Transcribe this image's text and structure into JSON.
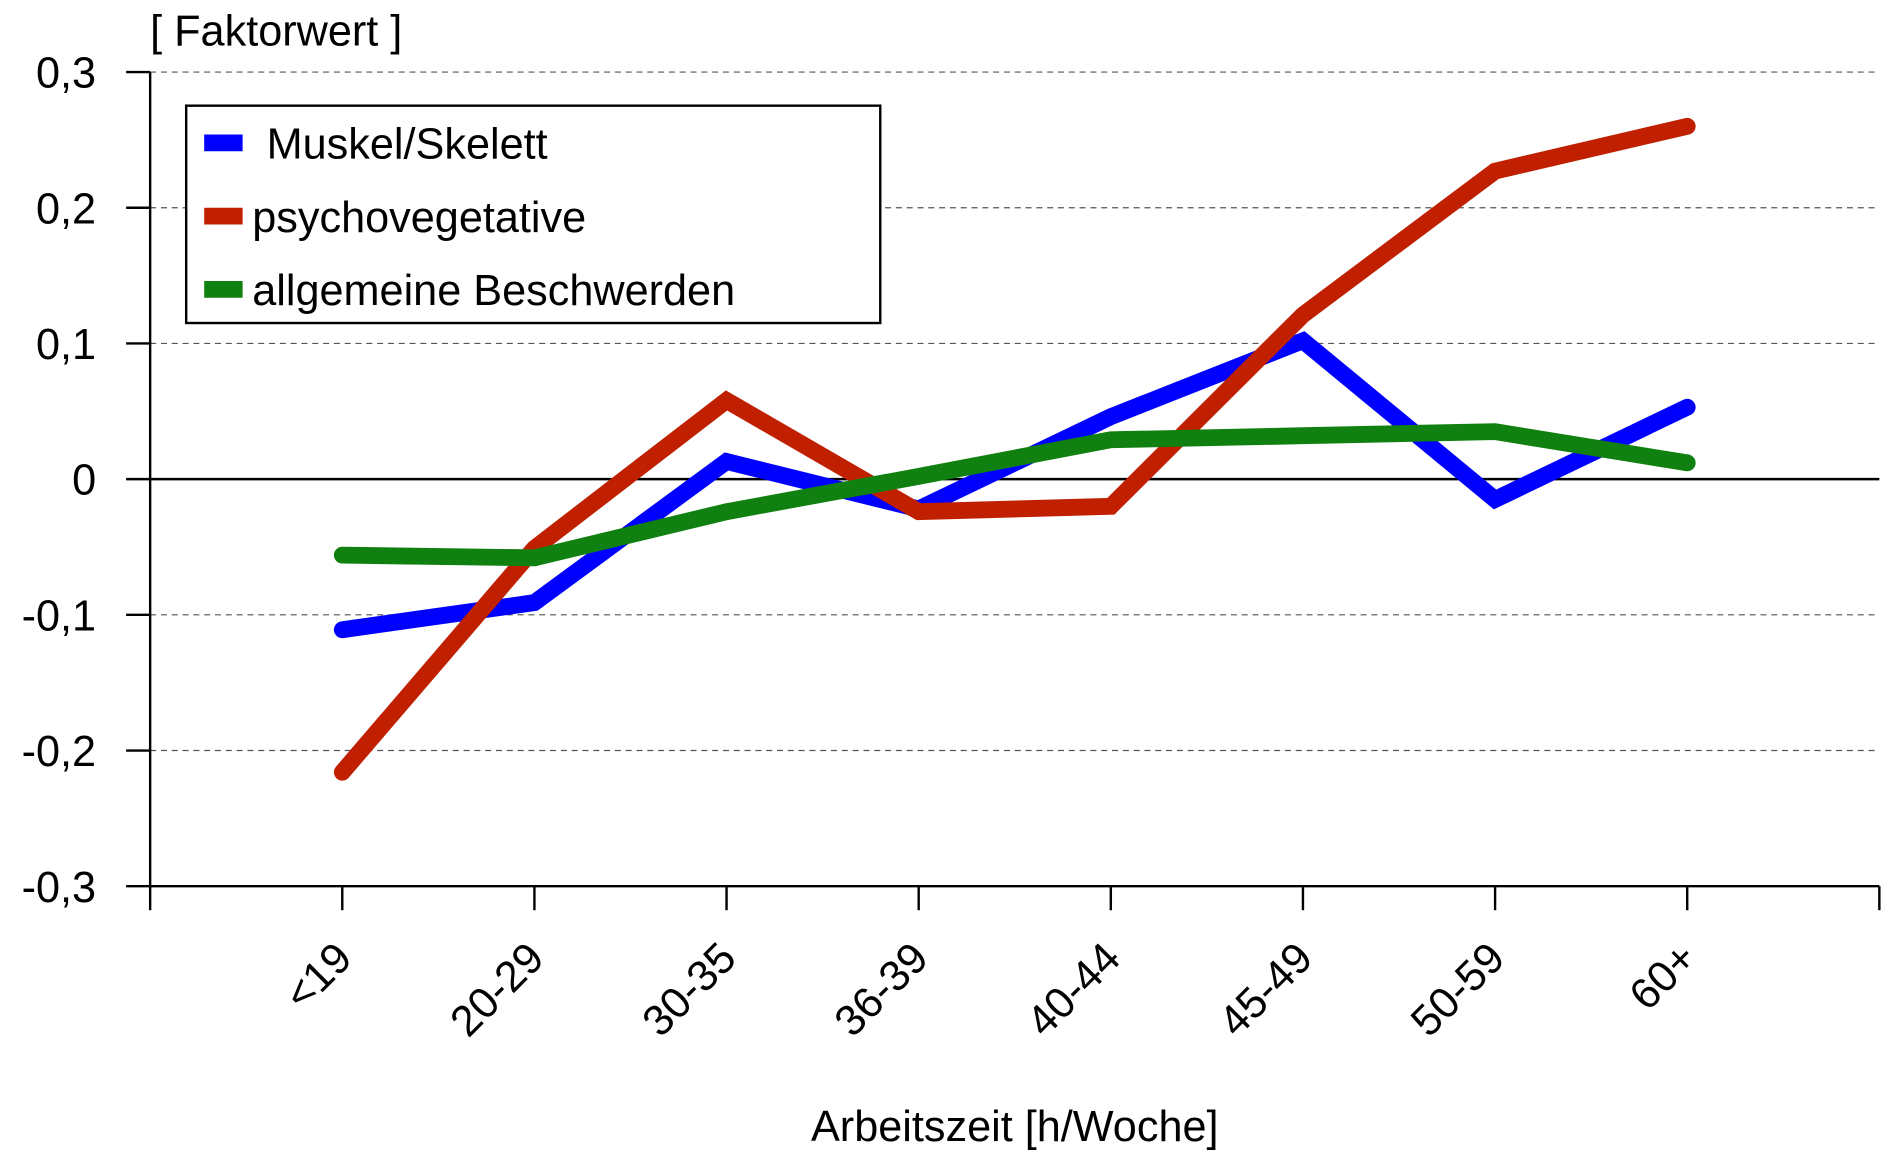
{
  "chart_data": {
    "type": "line",
    "y_label": "[ Faktorwert ]",
    "x_label": "Arbeitszeit [h/Woche]",
    "categories": [
      "<19",
      "20-29",
      "30-35",
      "36-39",
      "40-44",
      "45-49",
      "50-59",
      "60+"
    ],
    "series": [
      {
        "name": "Muskel/Skelett",
        "color": "#0000ff",
        "values": [
          -0.111,
          -0.091,
          0.013,
          -0.022,
          0.046,
          0.102,
          -0.015,
          0.053
        ]
      },
      {
        "name": "psychovegetative",
        "color": "#c02000",
        "values": [
          -0.216,
          -0.051,
          0.058,
          -0.024,
          -0.02,
          0.121,
          0.227,
          0.26
        ]
      },
      {
        "name": "allgemeine Beschwerden",
        "color": "#108010",
        "values": [
          -0.056,
          -0.058,
          -0.024,
          0.002,
          0.029,
          0.032,
          0.035,
          0.012
        ]
      }
    ],
    "ylim": [
      -0.3,
      0.3
    ],
    "yticks": [
      {
        "value": -0.3,
        "label": "-0,3"
      },
      {
        "value": -0.2,
        "label": "-0,2"
      },
      {
        "value": -0.1,
        "label": "-0,1"
      },
      0,
      {
        "value": 0.1,
        "label": "0,1"
      },
      {
        "value": 0.2,
        "label": "0,2"
      },
      {
        "value": 0.3,
        "label": "0,3"
      }
    ],
    "grid": true,
    "legend": "upper left"
  }
}
